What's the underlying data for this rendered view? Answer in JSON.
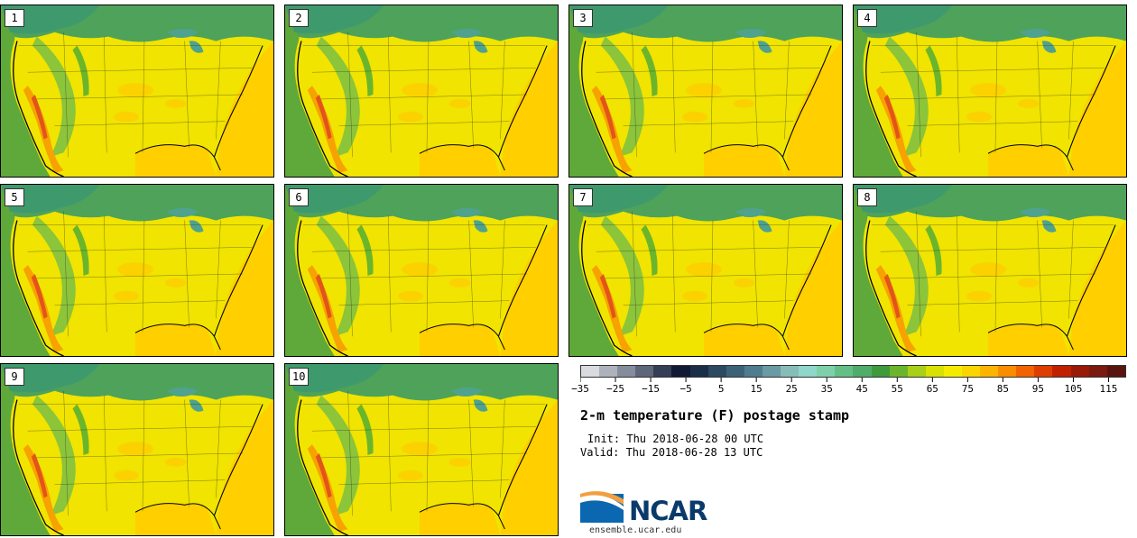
{
  "title": "2-m temperature (F) postage stamp",
  "init": "Init: Thu 2018-06-28 00 UTC",
  "valid": "Valid: Thu 2018-06-28 13 UTC",
  "logo": {
    "name": "NCAR",
    "url": "ensemble.ucar.edu"
  },
  "members": [
    "1",
    "2",
    "3",
    "4",
    "5",
    "6",
    "7",
    "8",
    "9",
    "10"
  ],
  "colorbar": {
    "min": -35,
    "max": 120,
    "step": 5,
    "tick_labels": [
      "−35",
      "−25",
      "−15",
      "−5",
      "5",
      "15",
      "25",
      "35",
      "45",
      "55",
      "65",
      "75",
      "85",
      "95",
      "105",
      "115"
    ],
    "colors": [
      "#d9dbdf",
      "#aeb2bc",
      "#858c9c",
      "#5e6679",
      "#343e56",
      "#111a34",
      "#1a2e48",
      "#2c4962",
      "#3d6278",
      "#4f7d8d",
      "#6a9aa3",
      "#87bdb8",
      "#8fd6cb",
      "#7dd0aa",
      "#64bf86",
      "#4fac6a",
      "#3f9a3c",
      "#6bb52c",
      "#a8cf19",
      "#d9e100",
      "#f4ec00",
      "#fbd500",
      "#fdb400",
      "#fa8c00",
      "#f26200",
      "#df3c00",
      "#c02000",
      "#9a1a08",
      "#7a1a10",
      "#5a1410"
    ]
  }
}
